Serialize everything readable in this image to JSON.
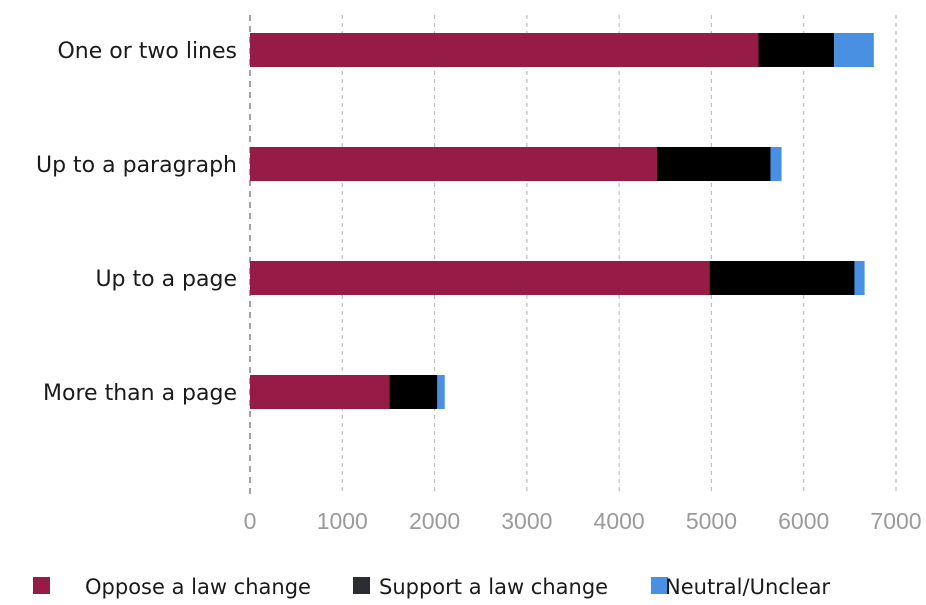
{
  "chart_data": {
    "type": "bar",
    "orientation": "horizontal",
    "stacked": true,
    "categories": [
      "One or two lines",
      "Up to a paragraph",
      "Up to a page",
      "More than a page"
    ],
    "series": [
      {
        "name": "Oppose a law change",
        "color": "#971b47",
        "values": [
          5510,
          4410,
          4980,
          1510
        ]
      },
      {
        "name": "Support a law change",
        "color": "#000000",
        "values": [
          820,
          1230,
          1570,
          520
        ]
      },
      {
        "name": "Neutral/Unclear",
        "color": "#4a90e2",
        "values": [
          430,
          120,
          110,
          80
        ]
      }
    ],
    "xlim": [
      0,
      7000
    ],
    "xticks": [
      0,
      1000,
      2000,
      3000,
      4000,
      5000,
      6000,
      7000
    ],
    "grid": "vertical dashed",
    "legend": "bottom"
  },
  "legend_items": [
    {
      "label": "Oppose a law change",
      "color": "#971b47"
    },
    {
      "label": "Support a law change",
      "color": "#2b2d33"
    },
    {
      "label": "Neutral/Unclear",
      "color": "#4a90e2"
    }
  ]
}
